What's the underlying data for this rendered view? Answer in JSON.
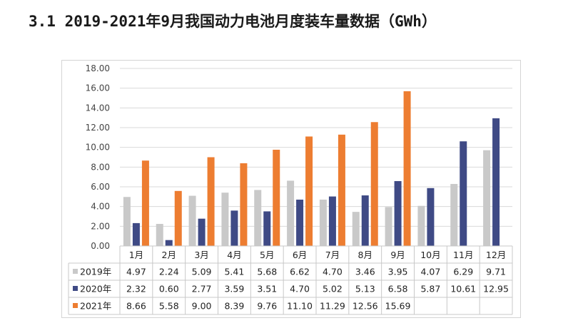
{
  "title": "3.1 2019-2021年9月我国动力电池月度装车量数据（GWh）",
  "chart_data": {
    "type": "bar",
    "categories": [
      "1月",
      "2月",
      "3月",
      "4月",
      "5月",
      "6月",
      "7月",
      "8月",
      "9月",
      "10月",
      "11月",
      "12月"
    ],
    "series": [
      {
        "name": "2019年",
        "color": "#c9c9c9",
        "values": [
          4.97,
          2.24,
          5.09,
          5.41,
          5.68,
          6.62,
          4.7,
          3.46,
          3.95,
          4.07,
          6.29,
          9.71
        ],
        "labels": [
          "4.97",
          "2.24",
          "5.09",
          "5.41",
          "5.68",
          "6.62",
          "4.70",
          "3.46",
          "3.95",
          "4.07",
          "6.29",
          "9.71"
        ]
      },
      {
        "name": "2020年",
        "color": "#3f4a85",
        "values": [
          2.32,
          0.6,
          2.77,
          3.59,
          3.51,
          4.7,
          5.02,
          5.13,
          6.58,
          5.87,
          10.61,
          12.95
        ],
        "labels": [
          "2.32",
          "0.60",
          "2.77",
          "3.59",
          "3.51",
          "4.70",
          "5.02",
          "5.13",
          "6.58",
          "5.87",
          "10.61",
          "12.95"
        ]
      },
      {
        "name": "2021年",
        "color": "#ed7d31",
        "values": [
          8.66,
          5.58,
          9.0,
          8.39,
          9.76,
          11.1,
          11.29,
          12.56,
          15.69,
          null,
          null,
          null
        ],
        "labels": [
          "8.66",
          "5.58",
          "9.00",
          "8.39",
          "9.76",
          "11.10",
          "11.29",
          "12.56",
          "15.69",
          "",
          "",
          ""
        ]
      }
    ],
    "yticks": [
      "0.00",
      "2.00",
      "4.00",
      "6.00",
      "8.00",
      "10.00",
      "12.00",
      "14.00",
      "16.00",
      "18.00"
    ],
    "ylim": [
      0,
      18
    ],
    "grid": true,
    "legend": "data-table"
  }
}
